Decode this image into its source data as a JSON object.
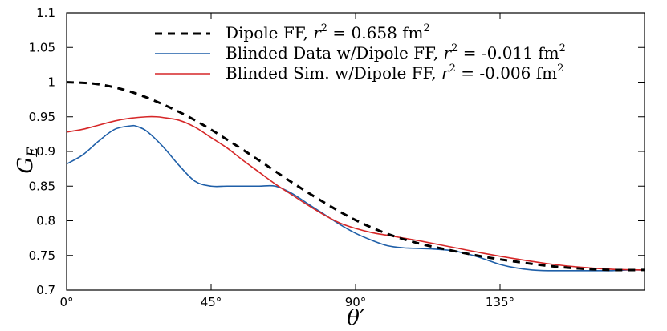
{
  "chart_data": {
    "type": "line",
    "xlabel": "θ′",
    "ylabel": "G_E",
    "xlim": [
      0,
      180
    ],
    "ylim": [
      0.7,
      1.1
    ],
    "grid": false,
    "legend_position": "top-center",
    "x_ticks": [
      {
        "value": 0,
        "label": "0°"
      },
      {
        "value": 45,
        "label": "45°"
      },
      {
        "value": 90,
        "label": "90°"
      },
      {
        "value": 135,
        "label": "135°"
      }
    ],
    "y_ticks": [
      {
        "value": 0.7,
        "label": "0.7"
      },
      {
        "value": 0.75,
        "label": "0.75"
      },
      {
        "value": 0.8,
        "label": "0.8"
      },
      {
        "value": 0.85,
        "label": "0.85"
      },
      {
        "value": 0.9,
        "label": "0.9"
      },
      {
        "value": 0.95,
        "label": "0.95"
      },
      {
        "value": 1.0,
        "label": "1"
      },
      {
        "value": 1.05,
        "label": "1.05"
      },
      {
        "value": 1.1,
        "label": "1.1"
      }
    ],
    "series": [
      {
        "name": "Dipole FF, r² = 0.658 fm²",
        "color": "#000000",
        "style": "dashed",
        "x": [
          0,
          10,
          20,
          30,
          40,
          50,
          60,
          70,
          80,
          90,
          100,
          110,
          120,
          130,
          140,
          150,
          160,
          170,
          180
        ],
        "y": [
          1.0,
          0.997,
          0.986,
          0.968,
          0.945,
          0.917,
          0.887,
          0.856,
          0.827,
          0.801,
          0.781,
          0.767,
          0.757,
          0.748,
          0.741,
          0.735,
          0.731,
          0.729,
          0.729
        ]
      },
      {
        "name": "Blinded Data w/Dipole FF, r² = -0.011 fm²",
        "color": "#1f5fa8",
        "style": "solid",
        "x": [
          0,
          5,
          10,
          15,
          20,
          22,
          25,
          30,
          35,
          40,
          45,
          50,
          55,
          60,
          65,
          70,
          75,
          80,
          85,
          90,
          95,
          100,
          105,
          110,
          115,
          120,
          125,
          130,
          135,
          140,
          145,
          150,
          155,
          160,
          165,
          170,
          175,
          180
        ],
        "y": [
          0.882,
          0.895,
          0.915,
          0.932,
          0.937,
          0.936,
          0.929,
          0.907,
          0.88,
          0.857,
          0.85,
          0.85,
          0.85,
          0.85,
          0.85,
          0.84,
          0.825,
          0.81,
          0.795,
          0.782,
          0.772,
          0.764,
          0.761,
          0.76,
          0.759,
          0.757,
          0.752,
          0.745,
          0.737,
          0.732,
          0.729,
          0.728,
          0.728,
          0.728,
          0.728,
          0.728,
          0.729,
          0.729
        ]
      },
      {
        "name": "Blinded Sim. w/Dipole FF, r² = -0.006 fm²",
        "color": "#d62728",
        "style": "solid",
        "x": [
          0,
          5,
          10,
          15,
          20,
          25,
          28,
          30,
          35,
          40,
          45,
          50,
          55,
          60,
          65,
          70,
          75,
          80,
          85,
          90,
          95,
          100,
          105,
          110,
          120,
          130,
          140,
          150,
          160,
          170,
          180
        ],
        "y": [
          0.928,
          0.932,
          0.938,
          0.944,
          0.948,
          0.95,
          0.95,
          0.949,
          0.945,
          0.935,
          0.92,
          0.905,
          0.887,
          0.87,
          0.853,
          0.838,
          0.823,
          0.809,
          0.797,
          0.789,
          0.783,
          0.779,
          0.775,
          0.771,
          0.762,
          0.753,
          0.745,
          0.738,
          0.733,
          0.73,
          0.729
        ]
      }
    ]
  },
  "legend": {
    "entries": [
      {
        "text": "Dipole FF, ",
        "var": "r",
        "sup": "2",
        "rest": " = 0.658 fm",
        "sup2": "2"
      },
      {
        "text": "Blinded Data w/Dipole FF, ",
        "var": "r",
        "sup": "2",
        "rest": " = -0.011 fm",
        "sup2": "2"
      },
      {
        "text": "Blinded Sim. w/Dipole FF, ",
        "var": "r",
        "sup": "2",
        "rest": " = -0.006 fm",
        "sup2": "2"
      }
    ]
  },
  "axis_titles": {
    "y_main": "G",
    "y_sub": "E",
    "x_main": "θ′"
  }
}
